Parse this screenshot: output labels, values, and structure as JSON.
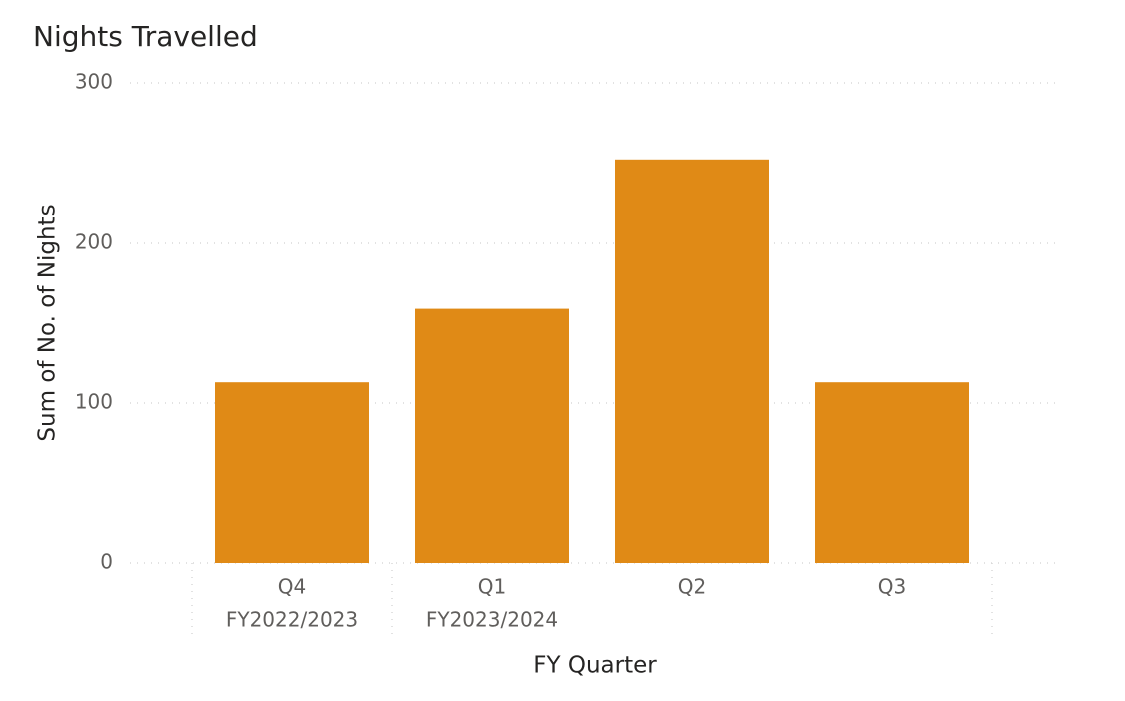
{
  "chart_data": {
    "type": "bar",
    "title": "Nights Travelled",
    "x_label": "FY Quarter",
    "y_label": "Sum of No. of Nights",
    "categories": [
      "Q4",
      "Q1",
      "Q2",
      "Q3"
    ],
    "groups": [
      {
        "label": "FY2022/2023",
        "count": 1
      },
      {
        "label": "FY2023/2024",
        "count": 3
      }
    ],
    "values": [
      113,
      159,
      252,
      113
    ],
    "color": "#e08a16",
    "ylim": [
      0,
      300
    ],
    "yticks": [
      0,
      100,
      200,
      300
    ],
    "grid": true
  }
}
